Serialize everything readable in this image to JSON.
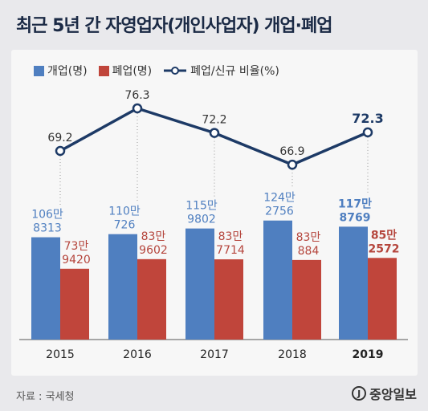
{
  "title": "최근 5년 간 자영업자(개인사업자) 개업·폐업",
  "legend": {
    "open": "개업(명)",
    "close": "폐업(명)",
    "ratio": "폐업/신규 비율(%)"
  },
  "source": "자료 : 국세청",
  "logo": "중앙일보",
  "colors": {
    "open": "#4f7fc0",
    "close": "#c0453b",
    "line": "#1d3a66",
    "open_label": "#4f7fc0",
    "close_label": "#b5463d"
  },
  "chart_data": {
    "type": "bar",
    "categories": [
      "2015",
      "2016",
      "2017",
      "2018",
      "2019"
    ],
    "series": [
      {
        "name": "개업(명)",
        "values": [
          1068313,
          1100726,
          1159802,
          1242756,
          1178769
        ],
        "labels": [
          [
            "106만",
            "8313"
          ],
          [
            "110만",
            "726"
          ],
          [
            "115만",
            "9802"
          ],
          [
            "124만",
            "2756"
          ],
          [
            "117만",
            "8769"
          ]
        ]
      },
      {
        "name": "폐업(명)",
        "values": [
          739420,
          839602,
          837714,
          830884,
          852572
        ],
        "labels": [
          [
            "73만",
            "9420"
          ],
          [
            "83만",
            "9602"
          ],
          [
            "83만",
            "7714"
          ],
          [
            "83만",
            "884"
          ],
          [
            "85만",
            "2572"
          ]
        ]
      }
    ],
    "line": {
      "name": "폐업/신규 비율(%)",
      "values": [
        69.2,
        76.3,
        72.2,
        66.9,
        72.3
      ],
      "labels": [
        "69.2",
        "76.3",
        "72.2",
        "66.9",
        "72.3"
      ]
    },
    "highlight_category": "2019",
    "grid": false
  }
}
